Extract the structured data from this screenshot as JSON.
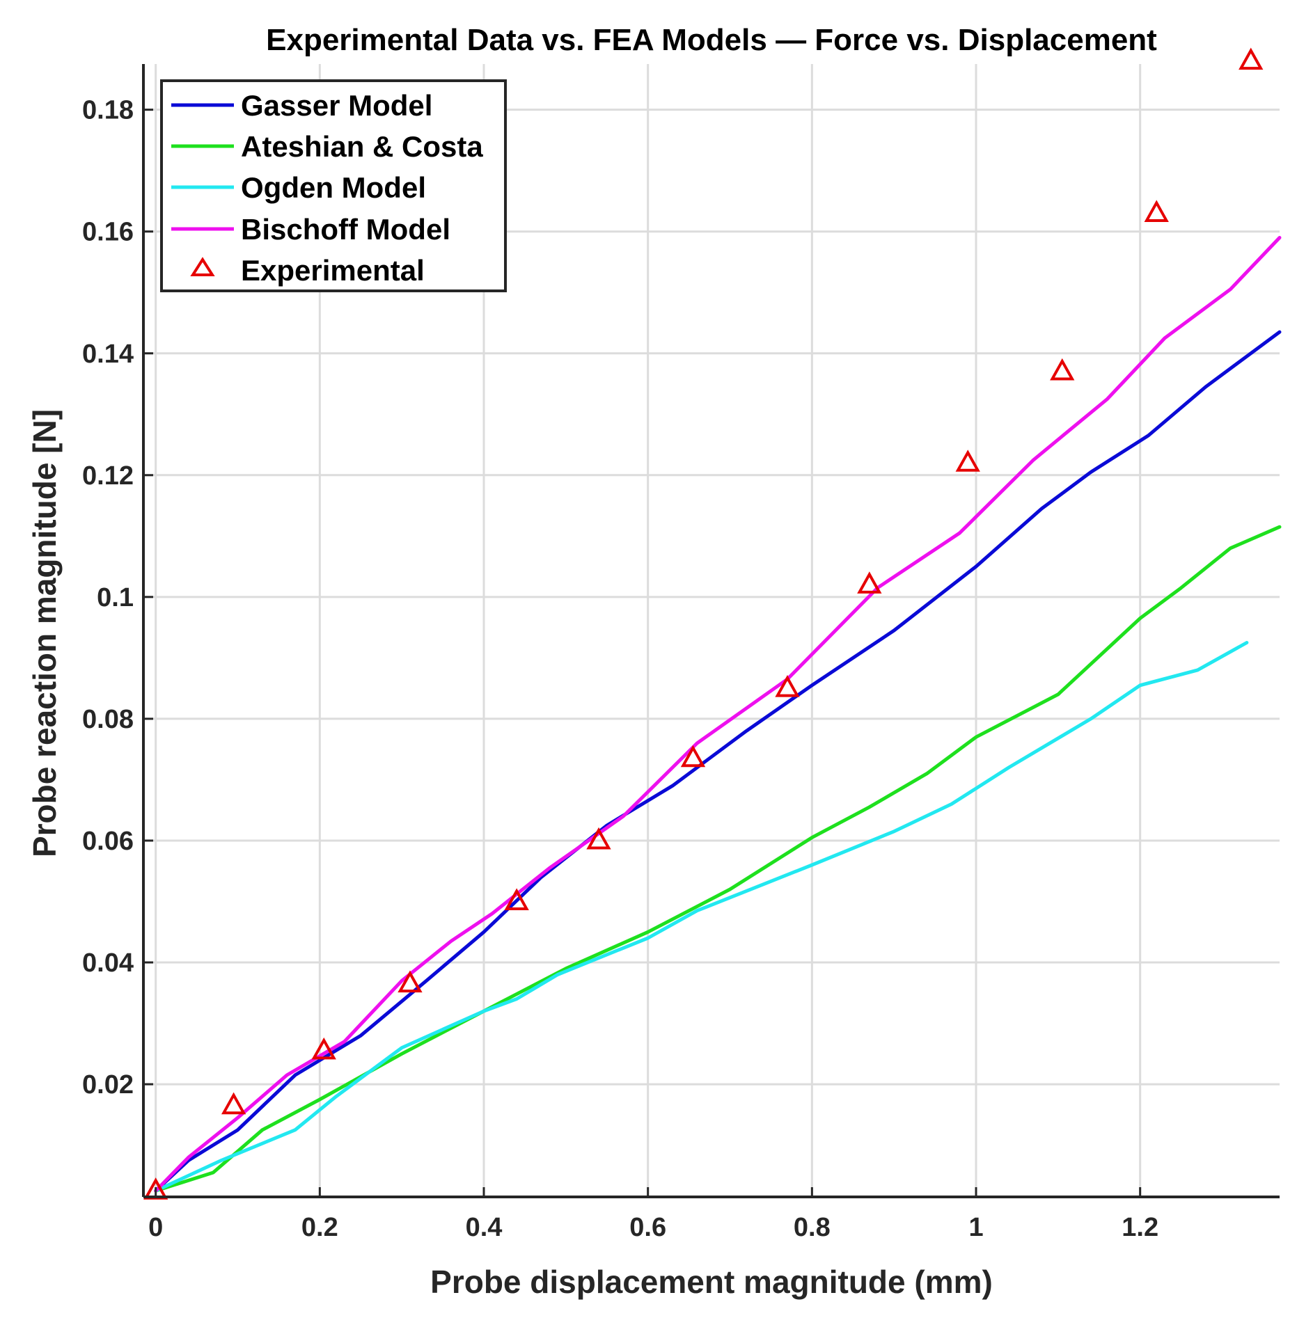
{
  "chart_data": {
    "type": "line",
    "title": "Experimental Data vs. FEA Models — Force vs. Displacement",
    "xlabel": "Probe displacement magnitude (mm)",
    "ylabel": "Probe reaction magnitude [N]",
    "xlim": [
      -0.015,
      1.37
    ],
    "ylim": [
      0.0015,
      0.1875
    ],
    "xticks": [
      0,
      0.2,
      0.4,
      0.6,
      0.8,
      1,
      1.2
    ],
    "xtick_labels": [
      "0",
      "0.2",
      "0.4",
      "0.6",
      "0.8",
      "1",
      "1.2"
    ],
    "yticks": [
      0.02,
      0.04,
      0.06,
      0.08,
      0.1,
      0.12,
      0.14,
      0.16,
      0.18
    ],
    "ytick_labels": [
      "0.02",
      "0.04",
      "0.06",
      "0.08",
      "0.1",
      "0.12",
      "0.14",
      "0.16",
      "0.18"
    ],
    "grid": true,
    "legend_position": "top-left",
    "series": [
      {
        "name": "Gasser Model",
        "color": "#0a0ad6",
        "style": "line",
        "x": [
          0,
          0.04,
          0.1,
          0.17,
          0.25,
          0.33,
          0.4,
          0.47,
          0.55,
          0.63,
          0.72,
          0.8,
          0.9,
          1.0,
          1.08,
          1.14,
          1.21,
          1.28,
          1.37
        ],
        "y": [
          0.0025,
          0.0075,
          0.0125,
          0.0215,
          0.028,
          0.037,
          0.045,
          0.054,
          0.0625,
          0.069,
          0.078,
          0.0855,
          0.0945,
          0.105,
          0.1145,
          0.1205,
          0.1265,
          0.1345,
          0.1435
        ]
      },
      {
        "name": "Ateshian & Costa",
        "color": "#1ee01e",
        "style": "line",
        "x": [
          0,
          0.07,
          0.13,
          0.2,
          0.3,
          0.4,
          0.5,
          0.6,
          0.7,
          0.8,
          0.87,
          0.94,
          1.0,
          1.1,
          1.2,
          1.25,
          1.31,
          1.37
        ],
        "y": [
          0.0025,
          0.0055,
          0.0125,
          0.0175,
          0.025,
          0.032,
          0.039,
          0.045,
          0.052,
          0.0605,
          0.0655,
          0.071,
          0.077,
          0.084,
          0.0965,
          0.1015,
          0.108,
          0.1115
        ]
      },
      {
        "name": "Ogden Model",
        "color": "#22e8f0",
        "style": "line",
        "x": [
          0,
          0.08,
          0.17,
          0.22,
          0.3,
          0.4,
          0.44,
          0.49,
          0.6,
          0.66,
          0.8,
          0.9,
          0.97,
          1.04,
          1.14,
          1.2,
          1.27,
          1.33
        ],
        "y": [
          0.0025,
          0.0075,
          0.0125,
          0.018,
          0.026,
          0.032,
          0.034,
          0.038,
          0.044,
          0.0485,
          0.056,
          0.0615,
          0.066,
          0.072,
          0.08,
          0.0855,
          0.088,
          0.0925
        ]
      },
      {
        "name": "Bischoff Model",
        "color": "#ee10ee",
        "style": "line",
        "x": [
          0,
          0.04,
          0.1,
          0.16,
          0.23,
          0.3,
          0.36,
          0.41,
          0.48,
          0.57,
          0.66,
          0.77,
          0.88,
          0.98,
          1.07,
          1.16,
          1.23,
          1.31,
          1.37
        ],
        "y": [
          0.0025,
          0.008,
          0.0145,
          0.0215,
          0.027,
          0.037,
          0.0435,
          0.048,
          0.0555,
          0.064,
          0.076,
          0.0865,
          0.1015,
          0.1105,
          0.1225,
          0.1325,
          0.1425,
          0.1505,
          0.159
        ]
      },
      {
        "name": "Experimental",
        "color": "#e60000",
        "style": "triangle-markers",
        "x": [
          0,
          0.095,
          0.205,
          0.31,
          0.44,
          0.54,
          0.655,
          0.77,
          0.87,
          0.99,
          1.105,
          1.22,
          1.335
        ],
        "y": [
          0.0025,
          0.0165,
          0.0255,
          0.0365,
          0.05,
          0.06,
          0.0735,
          0.085,
          0.102,
          0.122,
          0.137,
          0.163,
          0.188
        ]
      }
    ]
  }
}
